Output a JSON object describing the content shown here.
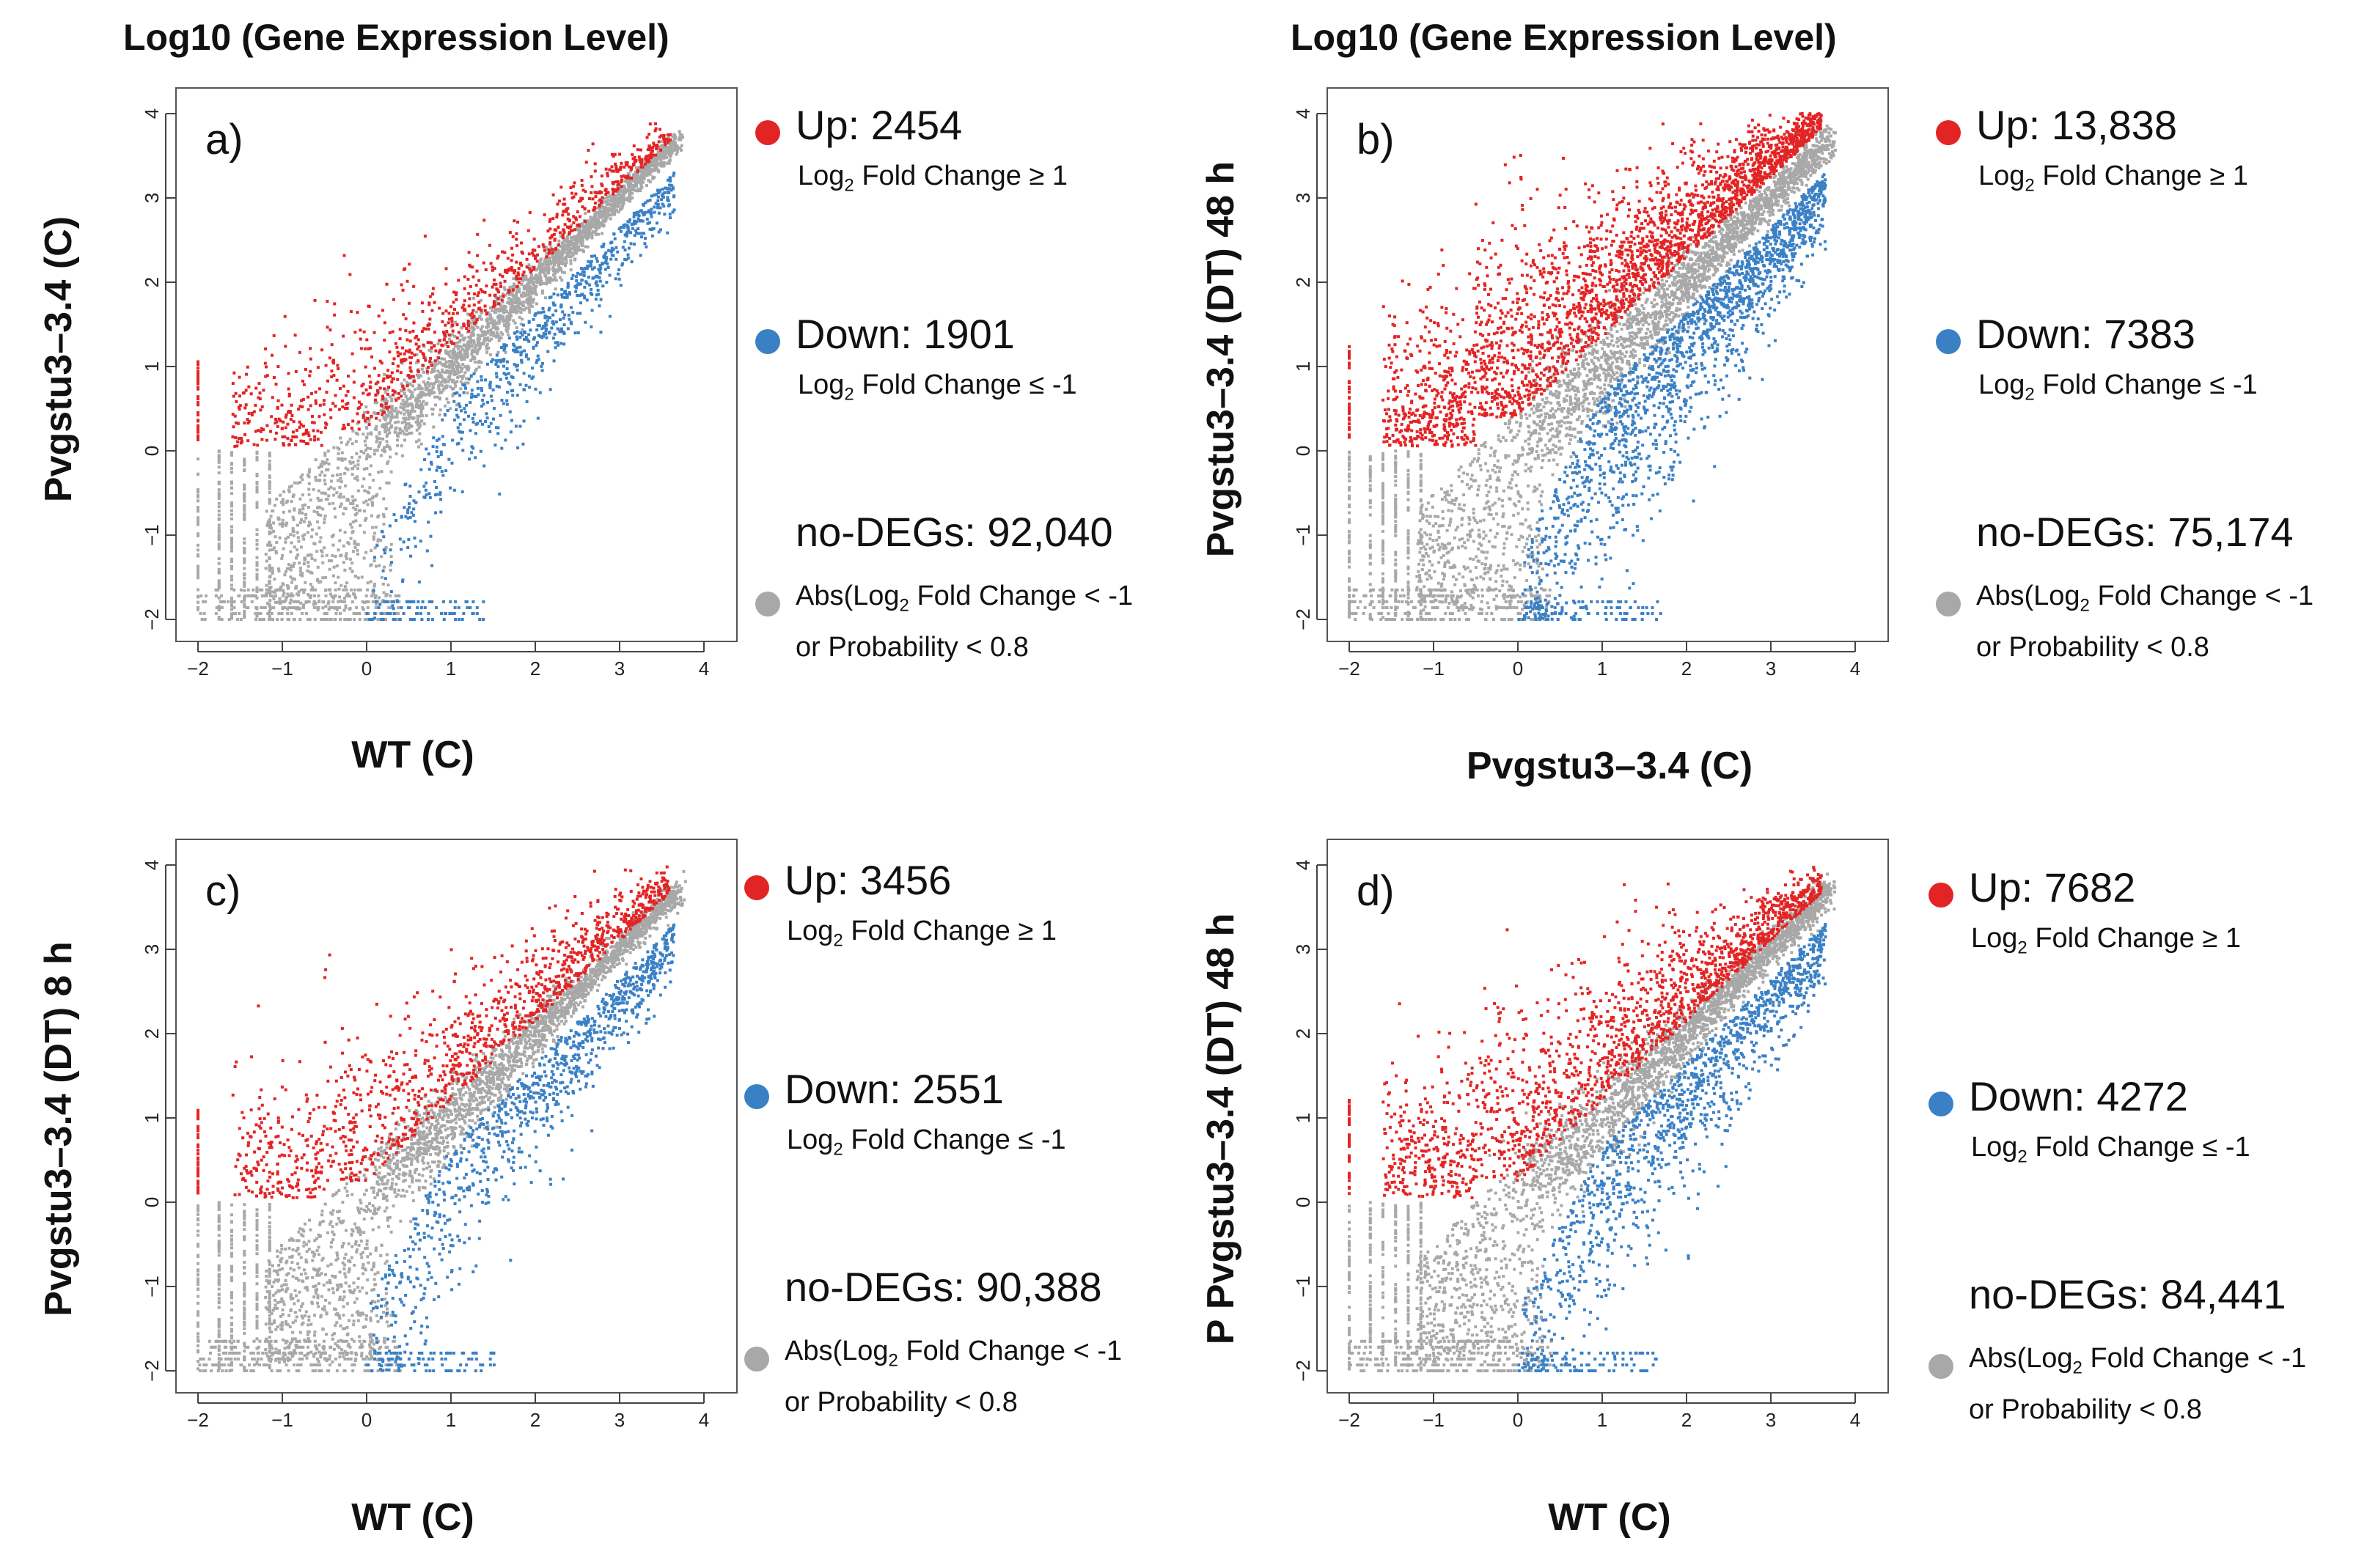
{
  "figure": {
    "title_left": "Log10 (Gene Expression Level)",
    "title_right": "Log10 (Gene Expression Level)"
  },
  "colors": {
    "up": "#e32424",
    "down": "#3a80c5",
    "nodeg": "#a8a8a8"
  },
  "chart_data": [
    {
      "type": "scatter",
      "panel_label": "a)",
      "xlabel": "WT (C)",
      "ylabel": "Pvgstu3–3.4 (C)",
      "xlim": [
        -2,
        4
      ],
      "ylim": [
        -2,
        4
      ],
      "x_ticks": [
        -2,
        -1,
        0,
        1,
        2,
        3,
        4
      ],
      "y_ticks": [
        -2,
        -1,
        0,
        1,
        2,
        3,
        4
      ],
      "series": [
        {
          "name": "Up",
          "count": "Up: 2454",
          "rule": "Fold Change ≥ 1",
          "rule_prefix": "Log",
          "rule_sub": "2",
          "color": "#e32424"
        },
        {
          "name": "Down",
          "count": "Down: 1901",
          "rule": "Fold Change ≤ -1",
          "rule_prefix": "Log",
          "rule_sub": "2",
          "color": "#3a80c5"
        },
        {
          "name": "no-DEGs",
          "count": "no-DEGs: 92,040",
          "rule": "Fold Change < -1",
          "rule_prefix": "Abs(Log",
          "rule_sub": "2",
          "rule2": "or Probability < 0.8",
          "color": "#a8a8a8"
        }
      ]
    },
    {
      "type": "scatter",
      "panel_label": "b)",
      "xlabel": "Pvgstu3–3.4 (C)",
      "ylabel": "Pvgstu3–3.4  (DT)  48 h",
      "xlim": [
        -2,
        4
      ],
      "ylim": [
        -2,
        4
      ],
      "x_ticks": [
        -2,
        -1,
        0,
        1,
        2,
        3,
        4
      ],
      "y_ticks": [
        -2,
        -1,
        0,
        1,
        2,
        3,
        4
      ],
      "series": [
        {
          "name": "Up",
          "count": "Up: 13,838",
          "rule": "Fold Change ≥ 1",
          "rule_prefix": "Log",
          "rule_sub": "2",
          "color": "#e32424"
        },
        {
          "name": "Down",
          "count": "Down: 7383",
          "rule": "Fold Change ≤ -1",
          "rule_prefix": "Log",
          "rule_sub": "2",
          "color": "#3a80c5"
        },
        {
          "name": "no-DEGs",
          "count": "no-DEGs: 75,174",
          "rule": "Fold Change < -1",
          "rule_prefix": "Abs(Log",
          "rule_sub": "2",
          "rule2": "or Probability < 0.8",
          "color": "#a8a8a8"
        }
      ]
    },
    {
      "type": "scatter",
      "panel_label": "c)",
      "xlabel": "WT (C)",
      "ylabel": "Pvgstu3–3.4 (DT)  8 h",
      "xlim": [
        -2,
        4
      ],
      "ylim": [
        -2,
        4
      ],
      "x_ticks": [
        -2,
        -1,
        0,
        1,
        2,
        3,
        4
      ],
      "y_ticks": [
        -2,
        -1,
        0,
        1,
        2,
        3,
        4
      ],
      "series": [
        {
          "name": "Up",
          "count": "Up: 3456",
          "rule": "Fold Change ≥ 1",
          "rule_prefix": "Log",
          "rule_sub": "2",
          "color": "#e32424"
        },
        {
          "name": "Down",
          "count": "Down: 2551",
          "rule": "Fold Change ≤ -1",
          "rule_prefix": "Log",
          "rule_sub": "2",
          "color": "#3a80c5"
        },
        {
          "name": "no-DEGs",
          "count": "no-DEGs: 90,388",
          "rule": "Fold Change < -1",
          "rule_prefix": "Abs(Log",
          "rule_sub": "2",
          "rule2": "or Probability < 0.8",
          "color": "#a8a8a8"
        }
      ]
    },
    {
      "type": "scatter",
      "panel_label": "d)",
      "xlabel": "WT (C)",
      "ylabel": "P Pvgstu3–3.4  (DT)  48 h",
      "xlim": [
        -2,
        4
      ],
      "ylim": [
        -2,
        4
      ],
      "x_ticks": [
        -2,
        -1,
        0,
        1,
        2,
        3,
        4
      ],
      "y_ticks": [
        -2,
        -1,
        0,
        1,
        2,
        3,
        4
      ],
      "series": [
        {
          "name": "Up",
          "count": "Up: 7682",
          "rule": "Fold Change ≥ 1",
          "rule_prefix": "Log",
          "rule_sub": "2",
          "color": "#e32424"
        },
        {
          "name": "Down",
          "count": "Down: 4272",
          "rule": "Fold Change ≤ -1",
          "rule_prefix": "Log",
          "rule_sub": "2",
          "color": "#3a80c5"
        },
        {
          "name": "no-DEGs",
          "count": "no-DEGs: 84,441",
          "rule": "Fold Change < -1",
          "rule_prefix": "Abs(Log",
          "rule_sub": "2",
          "rule2": "or Probability < 0.8",
          "color": "#a8a8a8"
        }
      ]
    }
  ]
}
